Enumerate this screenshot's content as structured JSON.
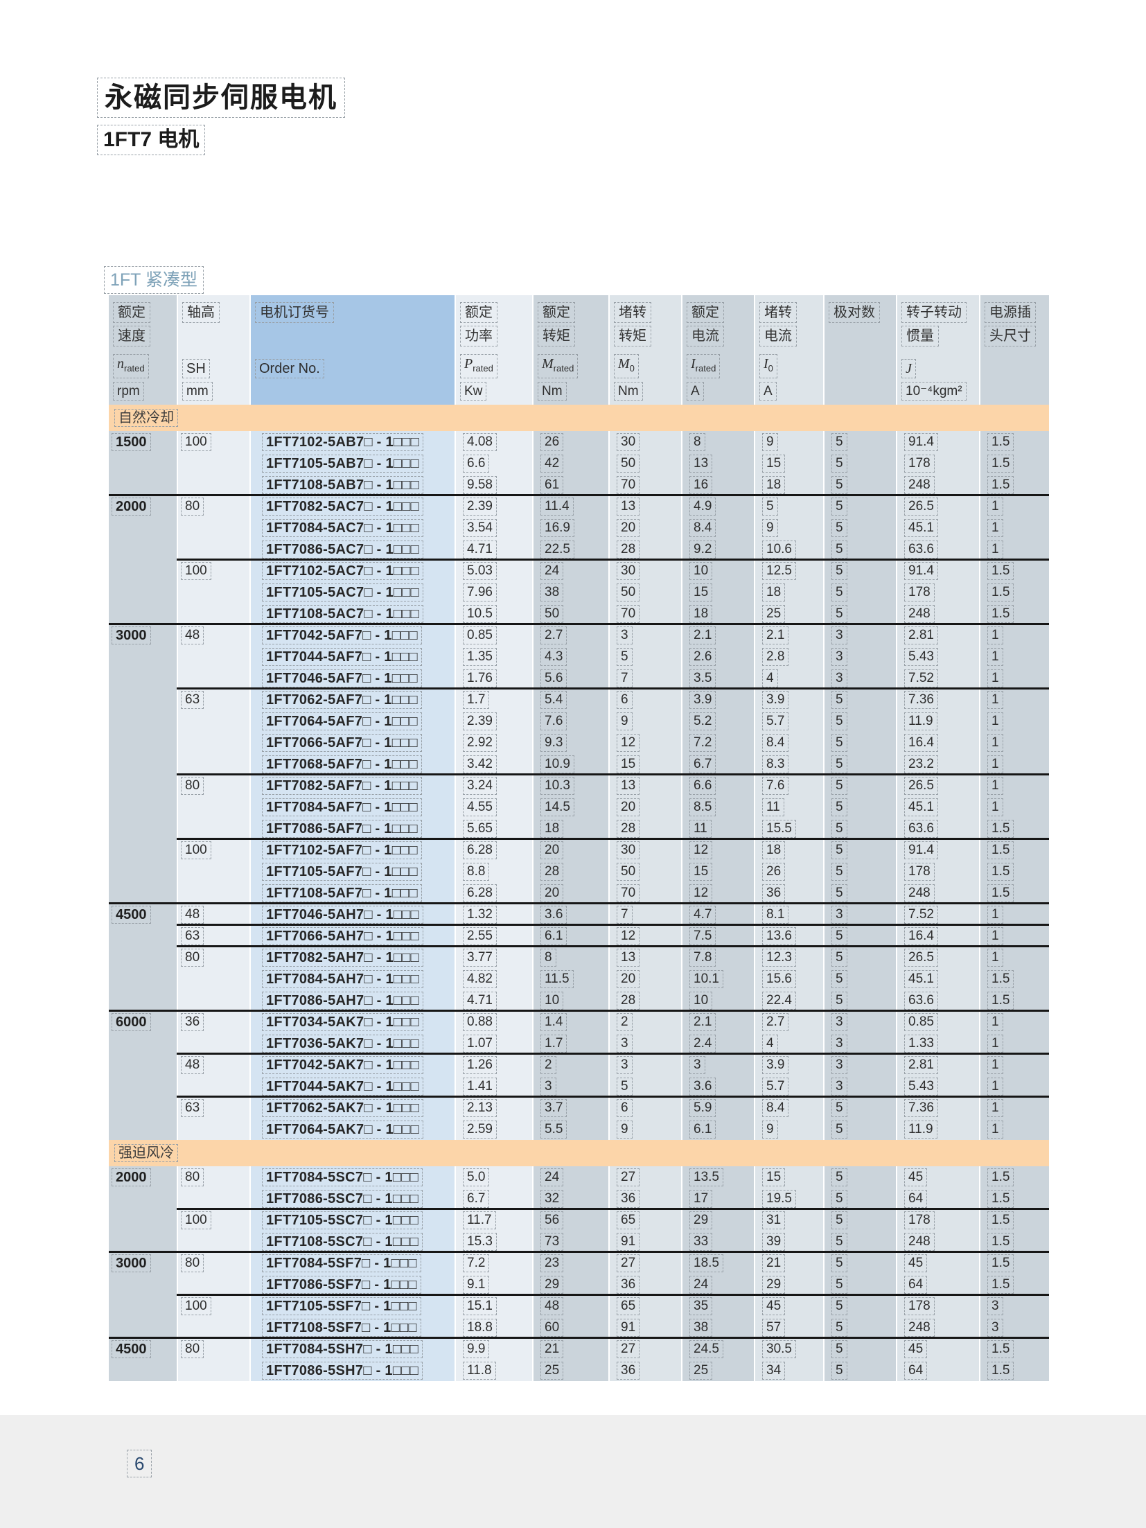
{
  "page": {
    "title": "永磁同步伺服电机",
    "subtitle": "1FT7 电机",
    "series_label": "1FT 紧凑型",
    "page_number": "6"
  },
  "colors": {
    "column_dark": "#cbd4db",
    "column_light": "#dde4e9",
    "column_lighter": "#e9eef3",
    "order_column_body": "#d5e4f2",
    "order_column_header": "#a6c6e6",
    "section_band_orange": "#fcd5a9",
    "separator_line": "#161616",
    "dashed_box": "#98a0a7",
    "series_label_blue": "#7ea2b8",
    "page_number_blue": "#2b4a70",
    "footer_gray": "#efefef"
  },
  "table": {
    "columns": [
      {
        "id": "speed",
        "zh": [
          "额定",
          "速度"
        ],
        "sym": "n",
        "sym_sub": "rated",
        "sym_italic": true,
        "unit": "rpm",
        "shade": "dark"
      },
      {
        "id": "shaft_height",
        "zh": [
          "轴高"
        ],
        "sym": "SH",
        "sym_sub": "",
        "sym_italic": false,
        "unit": "mm",
        "shade": "lighter"
      },
      {
        "id": "order_no",
        "zh": [
          "电机订货号"
        ],
        "sym": "Order No.",
        "sym_sub": "",
        "sym_italic": false,
        "unit": "",
        "shade": "order"
      },
      {
        "id": "rated_power",
        "zh": [
          "额定",
          "功率"
        ],
        "sym": "P",
        "sym_sub": "rated",
        "sym_italic": true,
        "unit": "Kw",
        "shade": "lighter"
      },
      {
        "id": "rated_torque",
        "zh": [
          "额定",
          "转矩"
        ],
        "sym": "M",
        "sym_sub": "rated",
        "sym_italic": true,
        "unit": "Nm",
        "shade": "dark"
      },
      {
        "id": "stall_torque",
        "zh": [
          "堵转",
          "转矩"
        ],
        "sym": "M",
        "sym_sub": "0",
        "sym_italic": true,
        "unit": "Nm",
        "shade": "light"
      },
      {
        "id": "rated_current",
        "zh": [
          "额定",
          "电流"
        ],
        "sym": "I",
        "sym_sub": "rated",
        "sym_italic": true,
        "unit": "A",
        "shade": "dark"
      },
      {
        "id": "stall_current",
        "zh": [
          "堵转",
          "电流"
        ],
        "sym": "I",
        "sym_sub": "0",
        "sym_italic": true,
        "unit": "A",
        "shade": "light"
      },
      {
        "id": "pole_pairs",
        "zh": [
          "极对数"
        ],
        "sym": "",
        "sym_sub": "",
        "sym_italic": false,
        "unit": "",
        "shade": "dark"
      },
      {
        "id": "rotor_inertia",
        "zh": [
          "转子转动",
          "惯量"
        ],
        "sym": "J",
        "sym_sub": "",
        "sym_italic": true,
        "unit": "10⁻⁴kgm²",
        "shade": "light"
      },
      {
        "id": "power_plug",
        "zh": [
          "电源插",
          "头尺寸"
        ],
        "sym": "",
        "sym_sub": "",
        "sym_italic": false,
        "unit": "",
        "shade": "dark"
      }
    ],
    "sections": [
      {
        "label": "自然冷却",
        "rows": [
          {
            "speed": "1500",
            "sh": "100",
            "order": "1FT7102-5AB7□ - 1□□□",
            "values": [
              "4.08",
              "26",
              "30",
              "8",
              "9",
              "5",
              "91.4",
              "1.5"
            ],
            "line": "none"
          },
          {
            "speed": "",
            "sh": "",
            "order": "1FT7105-5AB7□ - 1□□□",
            "values": [
              "6.6",
              "42",
              "50",
              "13",
              "15",
              "5",
              "178",
              "1.5"
            ],
            "line": "none"
          },
          {
            "speed": "",
            "sh": "",
            "order": "1FT7108-5AB7□ - 1□□□",
            "values": [
              "9.58",
              "61",
              "70",
              "16",
              "18",
              "5",
              "248",
              "1.5"
            ],
            "line": "none"
          },
          {
            "speed": "2000",
            "sh": "80",
            "order": "1FT7082-5AC7□ - 1□□□",
            "values": [
              "2.39",
              "11.4",
              "13",
              "4.9",
              "5",
              "5",
              "26.5",
              "1"
            ],
            "line": "full"
          },
          {
            "speed": "",
            "sh": "",
            "order": "1FT7084-5AC7□ - 1□□□",
            "values": [
              "3.54",
              "16.9",
              "20",
              "8.4",
              "9",
              "5",
              "45.1",
              "1"
            ],
            "line": "none"
          },
          {
            "speed": "",
            "sh": "",
            "order": "1FT7086-5AC7□ - 1□□□",
            "values": [
              "4.71",
              "22.5",
              "28",
              "9.2",
              "10.6",
              "5",
              "63.6",
              "1"
            ],
            "line": "none"
          },
          {
            "speed": "",
            "sh": "100",
            "order": "1FT7102-5AC7□ - 1□□□",
            "values": [
              "5.03",
              "24",
              "30",
              "10",
              "12.5",
              "5",
              "91.4",
              "1.5"
            ],
            "line": "partial"
          },
          {
            "speed": "",
            "sh": "",
            "order": "1FT7105-5AC7□ - 1□□□",
            "values": [
              "7.96",
              "38",
              "50",
              "15",
              "18",
              "5",
              "178",
              "1.5"
            ],
            "line": "none"
          },
          {
            "speed": "",
            "sh": "",
            "order": "1FT7108-5AC7□ - 1□□□",
            "values": [
              "10.5",
              "50",
              "70",
              "18",
              "25",
              "5",
              "248",
              "1.5"
            ],
            "line": "none"
          },
          {
            "speed": "3000",
            "sh": "48",
            "order": "1FT7042-5AF7□ - 1□□□",
            "values": [
              "0.85",
              "2.7",
              "3",
              "2.1",
              "2.1",
              "3",
              "2.81",
              "1"
            ],
            "line": "full"
          },
          {
            "speed": "",
            "sh": "",
            "order": "1FT7044-5AF7□ - 1□□□",
            "values": [
              "1.35",
              "4.3",
              "5",
              "2.6",
              "2.8",
              "3",
              "5.43",
              "1"
            ],
            "line": "none"
          },
          {
            "speed": "",
            "sh": "",
            "order": "1FT7046-5AF7□ - 1□□□",
            "values": [
              "1.76",
              "5.6",
              "7",
              "3.5",
              "4",
              "3",
              "7.52",
              "1"
            ],
            "line": "none"
          },
          {
            "speed": "",
            "sh": "63",
            "order": "1FT7062-5AF7□ - 1□□□",
            "values": [
              "1.7",
              "5.4",
              "6",
              "3.9",
              "3.9",
              "5",
              "7.36",
              "1"
            ],
            "line": "partial"
          },
          {
            "speed": "",
            "sh": "",
            "order": "1FT7064-5AF7□ - 1□□□",
            "values": [
              "2.39",
              "7.6",
              "9",
              "5.2",
              "5.7",
              "5",
              "11.9",
              "1"
            ],
            "line": "none"
          },
          {
            "speed": "",
            "sh": "",
            "order": "1FT7066-5AF7□ - 1□□□",
            "values": [
              "2.92",
              "9.3",
              "12",
              "7.2",
              "8.4",
              "5",
              "16.4",
              "1"
            ],
            "line": "none"
          },
          {
            "speed": "",
            "sh": "",
            "order": "1FT7068-5AF7□ - 1□□□",
            "values": [
              "3.42",
              "10.9",
              "15",
              "6.7",
              "8.3",
              "5",
              "23.2",
              "1"
            ],
            "line": "none"
          },
          {
            "speed": "",
            "sh": "80",
            "order": "1FT7082-5AF7□ - 1□□□",
            "values": [
              "3.24",
              "10.3",
              "13",
              "6.6",
              "7.6",
              "5",
              "26.5",
              "1"
            ],
            "line": "partial"
          },
          {
            "speed": "",
            "sh": "",
            "order": "1FT7084-5AF7□ - 1□□□",
            "values": [
              "4.55",
              "14.5",
              "20",
              "8.5",
              "11",
              "5",
              "45.1",
              "1"
            ],
            "line": "none"
          },
          {
            "speed": "",
            "sh": "",
            "order": "1FT7086-5AF7□ - 1□□□",
            "values": [
              "5.65",
              "18",
              "28",
              "11",
              "15.5",
              "5",
              "63.6",
              "1.5"
            ],
            "line": "none"
          },
          {
            "speed": "",
            "sh": "100",
            "order": "1FT7102-5AF7□ - 1□□□",
            "values": [
              "6.28",
              "20",
              "30",
              "12",
              "18",
              "5",
              "91.4",
              "1.5"
            ],
            "line": "partial"
          },
          {
            "speed": "",
            "sh": "",
            "order": "1FT7105-5AF7□ - 1□□□",
            "values": [
              "8.8",
              "28",
              "50",
              "15",
              "26",
              "5",
              "178",
              "1.5"
            ],
            "line": "none"
          },
          {
            "speed": "",
            "sh": "",
            "order": "1FT7108-5AF7□ - 1□□□",
            "values": [
              "6.28",
              "20",
              "70",
              "12",
              "36",
              "5",
              "248",
              "1.5"
            ],
            "line": "none"
          },
          {
            "speed": "4500",
            "sh": "48",
            "order": "1FT7046-5AH7□ - 1□□□",
            "values": [
              "1.32",
              "3.6",
              "7",
              "4.7",
              "8.1",
              "3",
              "7.52",
              "1"
            ],
            "line": "full"
          },
          {
            "speed": "",
            "sh": "63",
            "order": "1FT7066-5AH7□ - 1□□□",
            "values": [
              "2.55",
              "6.1",
              "12",
              "7.5",
              "13.6",
              "5",
              "16.4",
              "1"
            ],
            "line": "partial"
          },
          {
            "speed": "",
            "sh": "80",
            "order": "1FT7082-5AH7□ - 1□□□",
            "values": [
              "3.77",
              "8",
              "13",
              "7.8",
              "12.3",
              "5",
              "26.5",
              "1"
            ],
            "line": "partial"
          },
          {
            "speed": "",
            "sh": "",
            "order": "1FT7084-5AH7□ - 1□□□",
            "values": [
              "4.82",
              "11.5",
              "20",
              "10.1",
              "15.6",
              "5",
              "45.1",
              "1.5"
            ],
            "line": "none"
          },
          {
            "speed": "",
            "sh": "",
            "order": "1FT7086-5AH7□ - 1□□□",
            "values": [
              "4.71",
              "10",
              "28",
              "10",
              "22.4",
              "5",
              "63.6",
              "1.5"
            ],
            "line": "none"
          },
          {
            "speed": "6000",
            "sh": "36",
            "order": "1FT7034-5AK7□ - 1□□□",
            "values": [
              "0.88",
              "1.4",
              "2",
              "2.1",
              "2.7",
              "3",
              "0.85",
              "1"
            ],
            "line": "full"
          },
          {
            "speed": "",
            "sh": "",
            "order": "1FT7036-5AK7□ - 1□□□",
            "values": [
              "1.07",
              "1.7",
              "3",
              "2.4",
              "4",
              "3",
              "1.33",
              "1"
            ],
            "line": "none"
          },
          {
            "speed": "",
            "sh": "48",
            "order": "1FT7042-5AK7□ - 1□□□",
            "values": [
              "1.26",
              "2",
              "3",
              "3",
              "3.9",
              "3",
              "2.81",
              "1"
            ],
            "line": "partial"
          },
          {
            "speed": "",
            "sh": "",
            "order": "1FT7044-5AK7□ - 1□□□",
            "values": [
              "1.41",
              "3",
              "5",
              "3.6",
              "5.7",
              "3",
              "5.43",
              "1"
            ],
            "line": "none"
          },
          {
            "speed": "",
            "sh": "63",
            "order": "1FT7062-5AK7□ - 1□□□",
            "values": [
              "2.13",
              "3.7",
              "6",
              "5.9",
              "8.4",
              "5",
              "7.36",
              "1"
            ],
            "line": "partial"
          },
          {
            "speed": "",
            "sh": "",
            "order": "1FT7064-5AK7□ - 1□□□",
            "values": [
              "2.59",
              "5.5",
              "9",
              "6.1",
              "9",
              "5",
              "11.9",
              "1"
            ],
            "line": "none"
          }
        ]
      },
      {
        "label": "强迫风冷",
        "rows": [
          {
            "speed": "2000",
            "sh": "80",
            "order": "1FT7084-5SC7□ - 1□□□",
            "values": [
              "5.0",
              "24",
              "27",
              "13.5",
              "15",
              "5",
              "45",
              "1.5"
            ],
            "line": "none"
          },
          {
            "speed": "",
            "sh": "",
            "order": "1FT7086-5SC7□ - 1□□□",
            "values": [
              "6.7",
              "32",
              "36",
              "17",
              "19.5",
              "5",
              "64",
              "1.5"
            ],
            "line": "none"
          },
          {
            "speed": "",
            "sh": "100",
            "order": "1FT7105-5SC7□ - 1□□□",
            "values": [
              "11.7",
              "56",
              "65",
              "29",
              "31",
              "5",
              "178",
              "1.5"
            ],
            "line": "partial"
          },
          {
            "speed": "",
            "sh": "",
            "order": "1FT7108-5SC7□ - 1□□□",
            "values": [
              "15.3",
              "73",
              "91",
              "33",
              "39",
              "5",
              "248",
              "1.5"
            ],
            "line": "none"
          },
          {
            "speed": "3000",
            "sh": "80",
            "order": "1FT7084-5SF7□ - 1□□□",
            "values": [
              "7.2",
              "23",
              "27",
              "18.5",
              "21",
              "5",
              "45",
              "1.5"
            ],
            "line": "full"
          },
          {
            "speed": "",
            "sh": "",
            "order": "1FT7086-5SF7□ - 1□□□",
            "values": [
              "9.1",
              "29",
              "36",
              "24",
              "29",
              "5",
              "64",
              "1.5"
            ],
            "line": "none"
          },
          {
            "speed": "",
            "sh": "100",
            "order": "1FT7105-5SF7□ - 1□□□",
            "values": [
              "15.1",
              "48",
              "65",
              "35",
              "45",
              "5",
              "178",
              "3"
            ],
            "line": "partial"
          },
          {
            "speed": "",
            "sh": "",
            "order": "1FT7108-5SF7□ - 1□□□",
            "values": [
              "18.8",
              "60",
              "91",
              "38",
              "57",
              "5",
              "248",
              "3"
            ],
            "line": "none"
          },
          {
            "speed": "4500",
            "sh": "80",
            "order": "1FT7084-5SH7□ - 1□□□",
            "values": [
              "9.9",
              "21",
              "27",
              "24.5",
              "30.5",
              "5",
              "45",
              "1.5"
            ],
            "line": "full"
          },
          {
            "speed": "",
            "sh": "",
            "order": "1FT7086-5SH7□ - 1□□□",
            "values": [
              "11.8",
              "25",
              "36",
              "25",
              "34",
              "5",
              "64",
              "1.5"
            ],
            "line": "none"
          }
        ]
      }
    ]
  }
}
